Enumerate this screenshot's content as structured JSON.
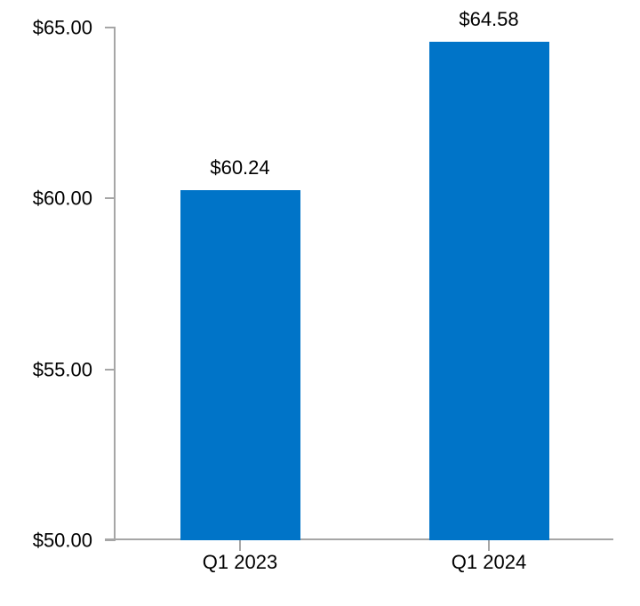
{
  "chart_data": {
    "type": "bar",
    "categories": [
      "Q1 2023",
      "Q1 2024"
    ],
    "values": [
      60.24,
      64.58
    ],
    "value_labels": [
      "$60.24",
      "$64.58"
    ],
    "y_ticks": [
      {
        "value": 65,
        "label": "$65.00"
      },
      {
        "value": 60,
        "label": "$60.00"
      },
      {
        "value": 55,
        "label": "$55.00"
      },
      {
        "value": 50,
        "label": "$50.00"
      }
    ],
    "ylim": [
      50,
      65
    ],
    "title": "",
    "xlabel": "",
    "ylabel": "",
    "grid": false,
    "legend": false,
    "colors": {
      "bar": "#0074C8",
      "axis": "#A6A6A6",
      "text": "#000000",
      "background": "#FFFFFF"
    }
  }
}
